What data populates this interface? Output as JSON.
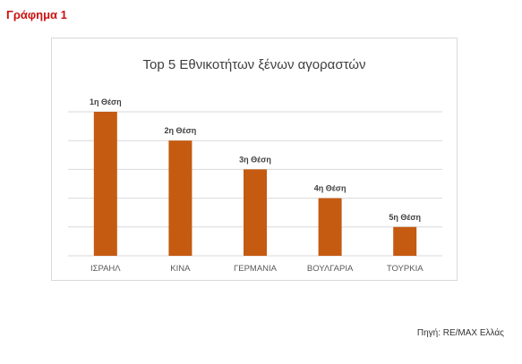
{
  "figure_label": "Γράφημα 1",
  "source_note": "Πηγή: RE/MAX Ελλάς",
  "colors": {
    "figure_label": "#cc1111",
    "bar": "#c55a11",
    "gridline": "#d9d9d9",
    "axis_text": "#595959",
    "title_text": "#404040",
    "data_label_text": "#404040"
  },
  "chart_data": {
    "type": "bar",
    "title": "Top 5 Εθνικοτήτων ξένων αγοραστών",
    "xlabel": "",
    "ylabel": "",
    "categories": [
      "ΙΣΡΑΗΛ",
      "ΚΙΝΑ",
      "ΓΕΡΜΑΝΙΑ",
      "ΒΟΥΛΓΑΡΙΑ",
      "ΤΟΥΡΚΙΑ"
    ],
    "values": [
      5,
      4,
      3,
      2,
      1
    ],
    "data_labels": [
      "1η Θέση",
      "2η Θέση",
      "3η Θέση",
      "4η Θέση",
      "5η Θέση"
    ],
    "ylim": [
      0,
      5
    ],
    "grid": true,
    "legend": "none",
    "y_tick_labels_shown": false
  }
}
